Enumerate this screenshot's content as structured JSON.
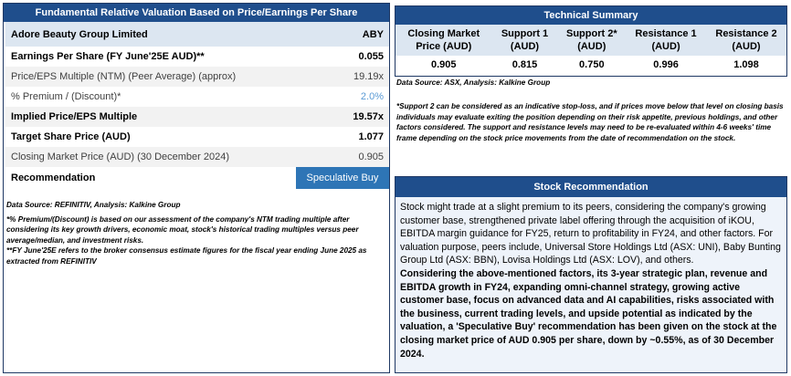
{
  "valuation": {
    "title": "Fundamental Relative Valuation Based on Price/Earnings Per Share",
    "company": "Adore Beauty Group Limited",
    "ticker": "ABY",
    "rows": [
      {
        "label": "Earnings Per Share (FY June'25E AUD)**",
        "value": "0.055"
      },
      {
        "label": "Price/EPS Multiple (NTM) (Peer Average) (approx)",
        "value": "19.19x"
      },
      {
        "label": "% Premium / (Discount)*",
        "value": "2.0%"
      },
      {
        "label": "Implied Price/EPS Multiple",
        "value": "19.57x"
      },
      {
        "label": "Target Share Price (AUD)",
        "value": "1.077"
      },
      {
        "label": "Closing Market Price (AUD) (30 December 2024)",
        "value": "0.905"
      }
    ],
    "recommendation_label": "Recommendation",
    "recommendation_value": "Speculative Buy"
  },
  "notes": {
    "source": "Data Source: REFINITIV, Analysis: Kalkine Group",
    "premium_note": "*% Premium/(Discount) is based on our assessment of the company's NTM trading multiple after considering its key growth drivers, economic moat, stock's historical trading multiples versus peer average/median, and investment risks.",
    "fy_note": "**FY June'25E refers to the broker consensus estimate figures for the fiscal year ending June 2025 as extracted from REFINITIV"
  },
  "technical": {
    "title": "Technical Summary",
    "headers": [
      "Closing Market Price (AUD)",
      "Support 1 (AUD)",
      "Support 2* (AUD)",
      "Resistance 1 (AUD)",
      "Resistance 2 (AUD)"
    ],
    "values": [
      "0.905",
      "0.815",
      "0.750",
      "0.996",
      "1.098"
    ],
    "source": "Data Source: ASX, Analysis: Kalkine Group",
    "note": "*Support 2 can be considered as an indicative stop-loss, and if prices move below that level on closing basis individuals may evaluate exiting the position depending on their risk appetite, previous holdings, and other factors considered. The support and resistance levels may need to be re-evaluated within 4-6 weeks' time frame depending on the stock price movements from the date of recommendation on the stock."
  },
  "stock_rec": {
    "title": "Stock Recommendation",
    "para1": "Stock might trade at a slight premium to its peers, considering the company's growing customer base, strengthened private label offering through the acquisition of iKOU, EBITDA margin guidance for FY25, return to profitability in FY24, and other factors. For valuation purpose, peers include, Universal Store Holdings Ltd (ASX: UNI), Baby Bunting Group Ltd (ASX: BBN), Lovisa Holdings Ltd (ASX: LOV), and others.",
    "para2": "Considering the above-mentioned factors, its 3-year strategic plan,  revenue and EBITDA growth in FY24, expanding omni-channel strategy, growing active customer base, focus on advanced data and AI capabilities, risks associated with the business, current trading levels, and upside potential as indicated by the valuation, a 'Speculative Buy' recommendation has been given on the stock at the closing market price of AUD 0.905 per share, down by ~0.55%, as of 30 December 2024."
  },
  "colors": {
    "header_blue": "#1f4e8c",
    "accent_blue": "#2e75b6",
    "light_blue": "#dce6f1"
  }
}
